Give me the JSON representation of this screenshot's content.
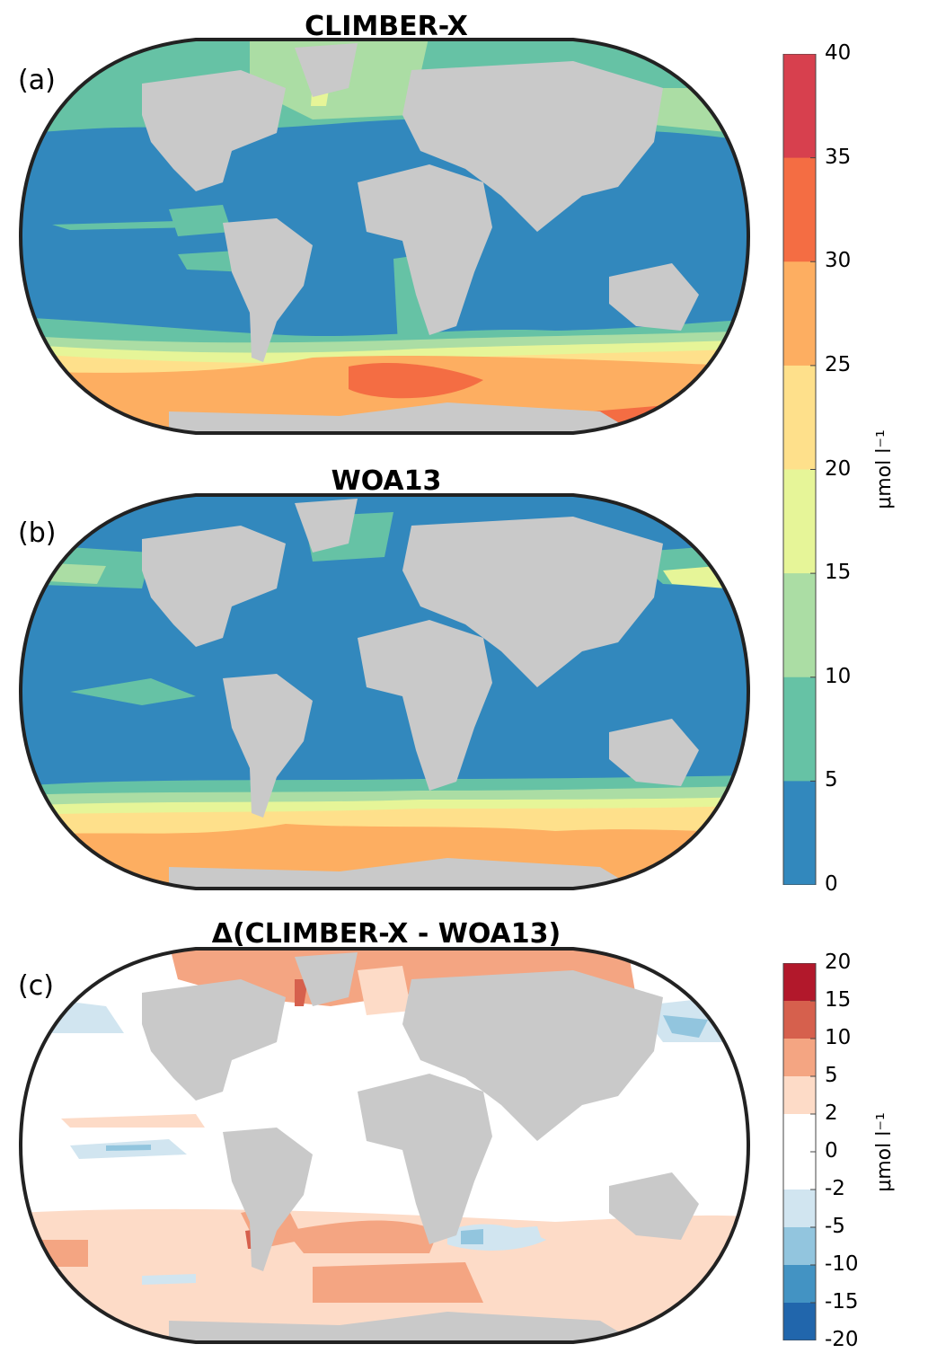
{
  "panels": [
    {
      "label": "(a)",
      "title": "CLIMBER-X"
    },
    {
      "label": "(b)",
      "title": "WOA13"
    },
    {
      "label": "(c)",
      "title": "Δ(CLIMBER-X - WOA13)"
    }
  ],
  "colorbar_top": {
    "ticks": [
      "40",
      "35",
      "30",
      "25",
      "20",
      "15",
      "10",
      "5",
      "0"
    ],
    "colors": [
      "#d7404e",
      "#f46d43",
      "#fdae61",
      "#fee08b",
      "#e6f598",
      "#abdda4",
      "#66c2a5",
      "#3288bd"
    ],
    "unit": "μmol l⁻¹"
  },
  "colorbar_bottom": {
    "ticks": [
      "20",
      "15",
      "10",
      "5",
      "2",
      "0",
      "-2",
      "-5",
      "-10",
      "-15",
      "-20"
    ],
    "colors": [
      "#b2182b",
      "#d6604d",
      "#f4a582",
      "#fddbc7",
      "#ffffff",
      "#ffffff",
      "#d1e5f0",
      "#92c5de",
      "#4393c3",
      "#2166ac"
    ],
    "unit": "μmol l⁻¹"
  },
  "colors": {
    "land": "#c9c9c9",
    "outline": "#222222"
  }
}
